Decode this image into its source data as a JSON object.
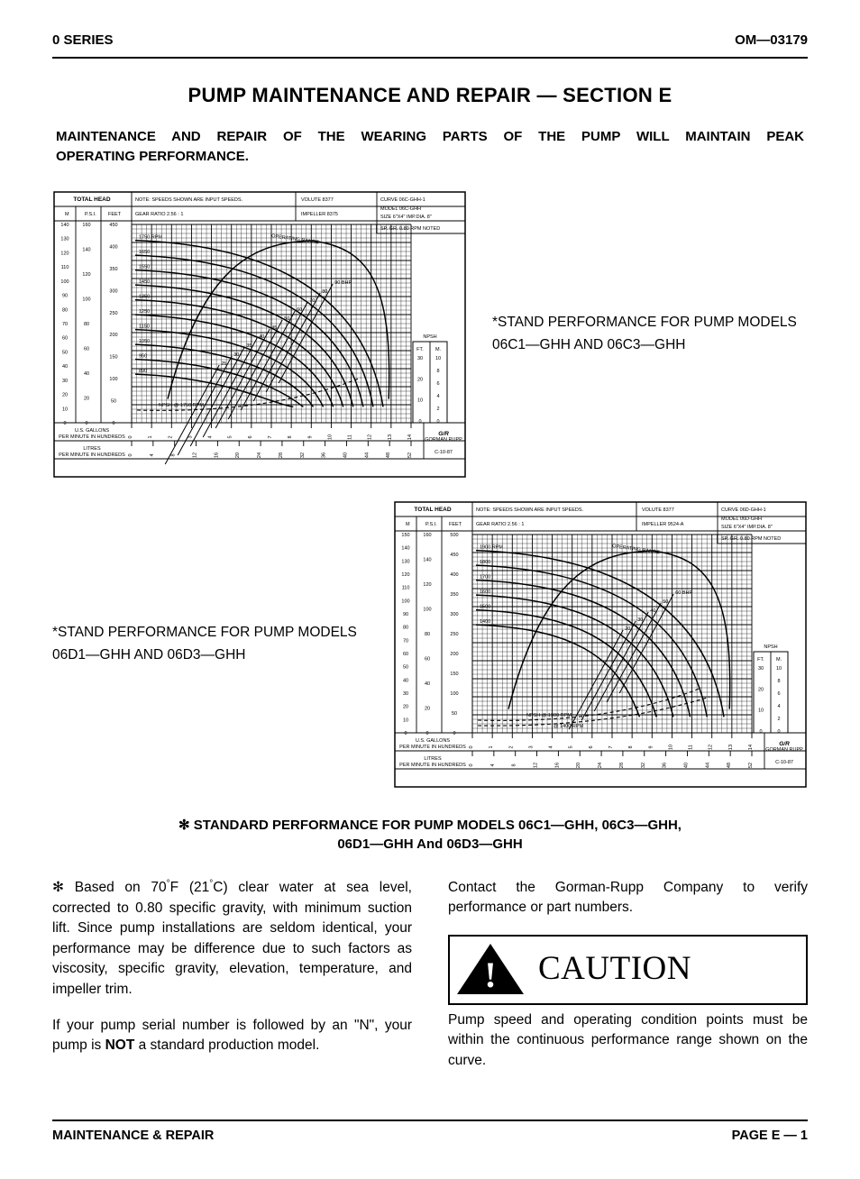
{
  "header": {
    "left": "0 SERIES",
    "right": "OM—03179"
  },
  "title": "PUMP MAINTENANCE AND REPAIR — SECTION E",
  "subtitle_l1": "MAINTENANCE AND REPAIR OF THE WEARING PARTS OF THE PUMP WILL MAINTAIN PEAK",
  "subtitle_l2": "OPERATING PERFORMANCE.",
  "chart1": {
    "header_note": "NOTE: SPEEDS SHOWN ARE INPUT SPEEDS.",
    "gear_ratio": "GEAR RATIO  2.56 : 1",
    "volute": "8377",
    "impeller": "8375",
    "curve": "06C-GHH-1",
    "model": "06C-GHH",
    "size": "6\"X4\"",
    "imp_dia": "8\"",
    "sp_gr": "0.80",
    "rpm": "NOTED",
    "total_head_labels": [
      "TOTAL HEAD",
      "M",
      "P.S.I.",
      "FEET"
    ],
    "x_label_top": "U.S. GALLONS PER MINUTE IN HUNDREDS",
    "x_label_bot": "LITRES PER MINUTE IN HUNDREDS",
    "op_range": "OPERATING RANGE",
    "npsh_label": "NPSH",
    "npsh_units": [
      "FT.",
      "M."
    ],
    "brand": "G/R",
    "brand_sub": "GORMAN RUPP",
    "date_code": "C-10-87",
    "m_ticks": [
      140,
      130,
      120,
      110,
      100,
      90,
      80,
      70,
      60,
      50,
      40,
      30,
      20,
      10,
      0
    ],
    "psi_ticks": [
      160,
      140,
      120,
      100,
      80,
      60,
      40,
      20,
      0
    ],
    "feet_ticks": [
      450,
      400,
      350,
      300,
      250,
      200,
      150,
      100,
      50,
      0
    ],
    "rpm_curves": [
      1750,
      1650,
      1550,
      1450,
      1350,
      1250,
      1150,
      1050,
      950,
      890
    ],
    "bhp_labels": [
      90,
      80,
      70,
      60,
      50,
      45,
      40,
      35,
      30,
      25
    ],
    "npsh_m_ticks": [
      10,
      8,
      6,
      4,
      2,
      0
    ],
    "npsh_ft_ticks": [
      30,
      20,
      10,
      0
    ],
    "x_gal_ticks": [
      0,
      1,
      2,
      3,
      4,
      5,
      6,
      7,
      8,
      9,
      10,
      11,
      12,
      13,
      14
    ],
    "x_lit_ticks": [
      0,
      4,
      8,
      12,
      16,
      20,
      24,
      28,
      32,
      36,
      40,
      44,
      48,
      52
    ],
    "npsh_curve_label": "NPSH @ 1750 RPM",
    "bhp_suffix": "BHP"
  },
  "caption1": "*STAND PERFORMANCE FOR PUMP MODELS 06C1—GHH AND 06C3—GHH",
  "chart2": {
    "header_note": "NOTE: SPEEDS SHOWN ARE INPUT SPEEDS.",
    "gear_ratio": "GEAR RATIO  2.56 : 1",
    "volute": "8377",
    "impeller": "9524-A",
    "curve": "06D-GHH-1",
    "model": "06D-GHH",
    "size": "6\"X4\"",
    "imp_dia": "8\"",
    "sp_gr": "0.80",
    "rpm": "NOTED",
    "total_head_labels": [
      "TOTAL HEAD",
      "M",
      "P.S.I.",
      "FEET"
    ],
    "x_label_top": "U.S. GALLONS PER MINUTE IN HUNDREDS",
    "x_label_bot": "LITRES PER MINUTE IN HUNDREDS",
    "op_range": "OPERATING RANGE",
    "npsh_label": "NPSH",
    "npsh_units": [
      "FT.",
      "M."
    ],
    "brand": "G/R",
    "brand_sub": "GORMAN RUPP",
    "date_code": "C-10-87",
    "m_ticks": [
      150,
      140,
      130,
      120,
      110,
      100,
      90,
      80,
      70,
      60,
      50,
      40,
      30,
      20,
      10,
      0
    ],
    "psi_ticks": [
      160,
      140,
      120,
      100,
      80,
      60,
      40,
      20,
      0
    ],
    "feet_ticks": [
      500,
      450,
      400,
      350,
      300,
      250,
      200,
      150,
      100,
      50,
      0
    ],
    "rpm_curves": [
      1900,
      1800,
      1700,
      1600,
      1500,
      1400
    ],
    "bhp_labels": [
      60,
      50,
      40,
      30,
      20
    ],
    "npsh_m_ticks": [
      10,
      8,
      6,
      4,
      2,
      0
    ],
    "npsh_ft_ticks": [
      30,
      20,
      10,
      0
    ],
    "x_gal_ticks": [
      0,
      1,
      2,
      3,
      4,
      5,
      6,
      7,
      8,
      9,
      10,
      11,
      12,
      13,
      14
    ],
    "x_lit_ticks": [
      0,
      4,
      8,
      12,
      16,
      20,
      24,
      28,
      32,
      36,
      40,
      44,
      48,
      52
    ],
    "npsh_curve_label1": "NPSH @ 1900 RPM",
    "npsh_curve_label2": "@ 1400 RPM",
    "bhp_suffix": "BHP"
  },
  "caption2": "*STAND PERFORMANCE FOR PUMP MODELS 06D1—GHH AND 06D3—GHH",
  "mid_caption_l1": "✻ STANDARD PERFORMANCE FOR PUMP MODELS 06C1—GHH, 06C3—GHH,",
  "mid_caption_l2": "06D1—GHH And 06D3—GHH",
  "body": {
    "p1_pre": "✻ Based on 70",
    "p1_deg1": "°",
    "p1_mid1": "F (21",
    "p1_deg2": "°",
    "p1_mid2": "C) clear water at sea level, corrected to 0.80 specific gravity, with minimum suction lift. Since pump installations are seldom identical, your performance may be difference due to such factors as viscosity, specific gravity, elevation, temperature, and impeller trim.",
    "p2_pre": "If your pump serial number is followed by an \"N\", your pump is ",
    "p2_bold": "NOT",
    "p2_post": " a standard production model. ",
    "p3": "Contact the Gorman-Rupp Company to verify performance or part numbers.",
    "caution": "CAUTION",
    "p4": "Pump speed and operating condition points must be within the continuous performance range shown on the curve."
  },
  "footer": {
    "left": "MAINTENANCE & REPAIR",
    "right": "PAGE E — 1"
  },
  "colors": {
    "fg": "#000000",
    "bg": "#ffffff"
  }
}
